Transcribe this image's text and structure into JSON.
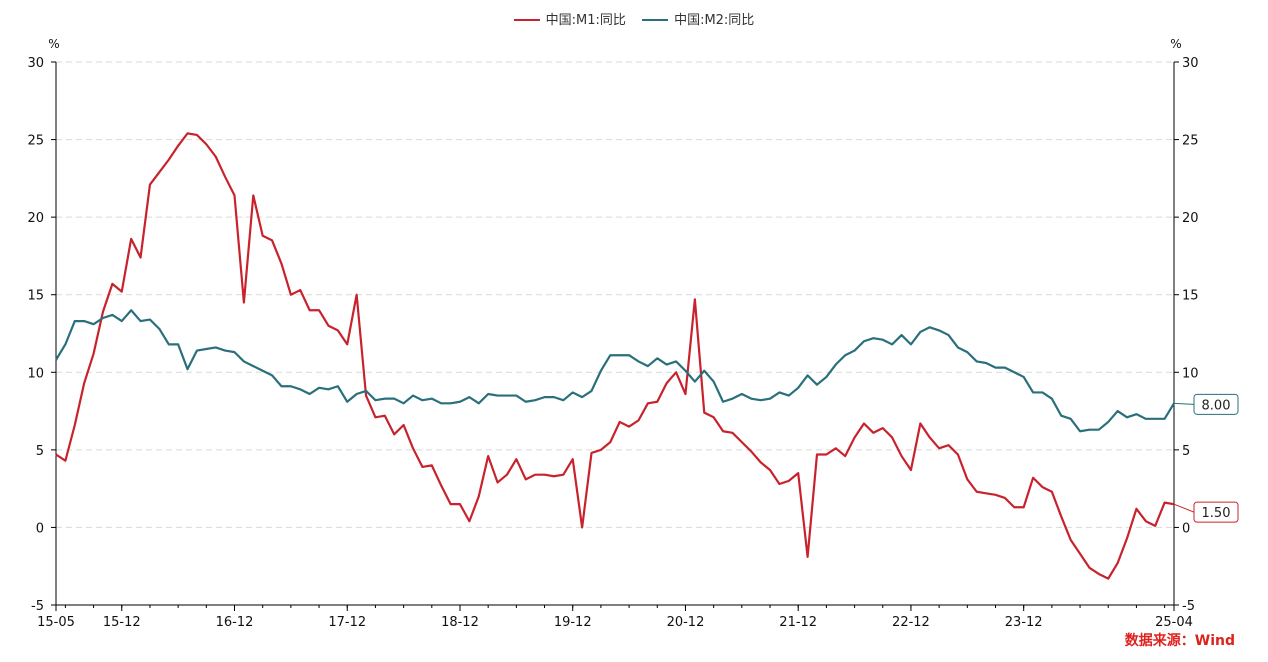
{
  "chart_data": {
    "type": "line",
    "y_unit_left": "%",
    "y_unit_right": "%",
    "ylim": [
      -5,
      30
    ],
    "y_ticks": [
      -5,
      0,
      5,
      10,
      15,
      20,
      25,
      30
    ],
    "x_start": "2015-05",
    "x_end": "2025-04",
    "x_tick_labels": [
      {
        "label": "15-05",
        "date": "2015-05"
      },
      {
        "label": "15-12",
        "date": "2015-12"
      },
      {
        "label": "16-12",
        "date": "2016-12"
      },
      {
        "label": "17-12",
        "date": "2017-12"
      },
      {
        "label": "18-12",
        "date": "2018-12"
      },
      {
        "label": "19-12",
        "date": "2019-12"
      },
      {
        "label": "20-12",
        "date": "2020-12"
      },
      {
        "label": "21-12",
        "date": "2021-12"
      },
      {
        "label": "22-12",
        "date": "2022-12"
      },
      {
        "label": "23-12",
        "date": "2023-12"
      },
      {
        "label": "25-04",
        "date": "2025-04"
      }
    ],
    "grid": true,
    "legend_position": "top-center",
    "series": [
      {
        "name": "中国:M1:同比",
        "color": "#c8232c",
        "end_label": "1.50",
        "values": [
          4.7,
          4.3,
          6.6,
          9.3,
          11.2,
          13.9,
          15.7,
          15.2,
          18.6,
          17.4,
          22.1,
          22.9,
          23.7,
          24.6,
          25.4,
          25.3,
          24.7,
          23.9,
          22.6,
          21.4,
          14.5,
          21.4,
          18.8,
          18.5,
          17.0,
          15.0,
          15.3,
          14.0,
          14.0,
          13.0,
          12.7,
          11.8,
          15.0,
          8.5,
          7.1,
          7.2,
          6.0,
          6.6,
          5.1,
          3.9,
          4.0,
          2.7,
          1.5,
          1.5,
          0.4,
          2.0,
          4.6,
          2.9,
          3.4,
          4.4,
          3.1,
          3.4,
          3.4,
          3.3,
          3.4,
          4.4,
          0.0,
          4.8,
          5.0,
          5.5,
          6.8,
          6.5,
          6.9,
          8.0,
          8.1,
          9.3,
          10.0,
          8.6,
          14.7,
          7.4,
          7.1,
          6.2,
          6.1,
          5.5,
          4.9,
          4.2,
          3.7,
          2.8,
          3.0,
          3.5,
          -1.9,
          4.7,
          4.7,
          5.1,
          4.6,
          5.8,
          6.7,
          6.1,
          6.4,
          5.8,
          4.6,
          3.7,
          6.7,
          5.8,
          5.1,
          5.3,
          4.7,
          3.1,
          2.3,
          2.2,
          2.1,
          1.9,
          1.3,
          1.3,
          3.2,
          2.6,
          2.3,
          0.7,
          -0.8,
          -1.7,
          -2.6,
          -3.0,
          -3.3,
          -2.3,
          -0.7,
          1.2,
          0.4,
          0.1,
          1.6,
          1.5
        ]
      },
      {
        "name": "中国:M2:同比",
        "color": "#2a6f7c",
        "end_label": "8.00",
        "values": [
          10.8,
          11.8,
          13.3,
          13.3,
          13.1,
          13.5,
          13.7,
          13.3,
          14.0,
          13.3,
          13.4,
          12.8,
          11.8,
          11.8,
          10.2,
          11.4,
          11.5,
          11.6,
          11.4,
          11.3,
          10.7,
          10.4,
          10.1,
          9.8,
          9.1,
          9.1,
          8.9,
          8.6,
          9.0,
          8.9,
          9.1,
          8.1,
          8.6,
          8.8,
          8.2,
          8.3,
          8.3,
          8.0,
          8.5,
          8.2,
          8.3,
          8.0,
          8.0,
          8.1,
          8.4,
          8.0,
          8.6,
          8.5,
          8.5,
          8.5,
          8.1,
          8.2,
          8.4,
          8.4,
          8.2,
          8.7,
          8.4,
          8.8,
          10.1,
          11.1,
          11.1,
          11.1,
          10.7,
          10.4,
          10.9,
          10.5,
          10.7,
          10.1,
          9.4,
          10.1,
          9.4,
          8.1,
          8.3,
          8.6,
          8.3,
          8.2,
          8.3,
          8.7,
          8.5,
          9.0,
          9.8,
          9.2,
          9.7,
          10.5,
          11.1,
          11.4,
          12.0,
          12.2,
          12.1,
          11.8,
          12.4,
          11.8,
          12.6,
          12.9,
          12.7,
          12.4,
          11.6,
          11.3,
          10.7,
          10.6,
          10.3,
          10.3,
          10.0,
          9.7,
          8.7,
          8.7,
          8.3,
          7.2,
          7.0,
          6.2,
          6.3,
          6.3,
          6.8,
          7.5,
          7.1,
          7.3,
          7.0,
          7.0,
          7.0,
          8.0
        ]
      }
    ]
  },
  "source_text": "数据来源：Wind"
}
